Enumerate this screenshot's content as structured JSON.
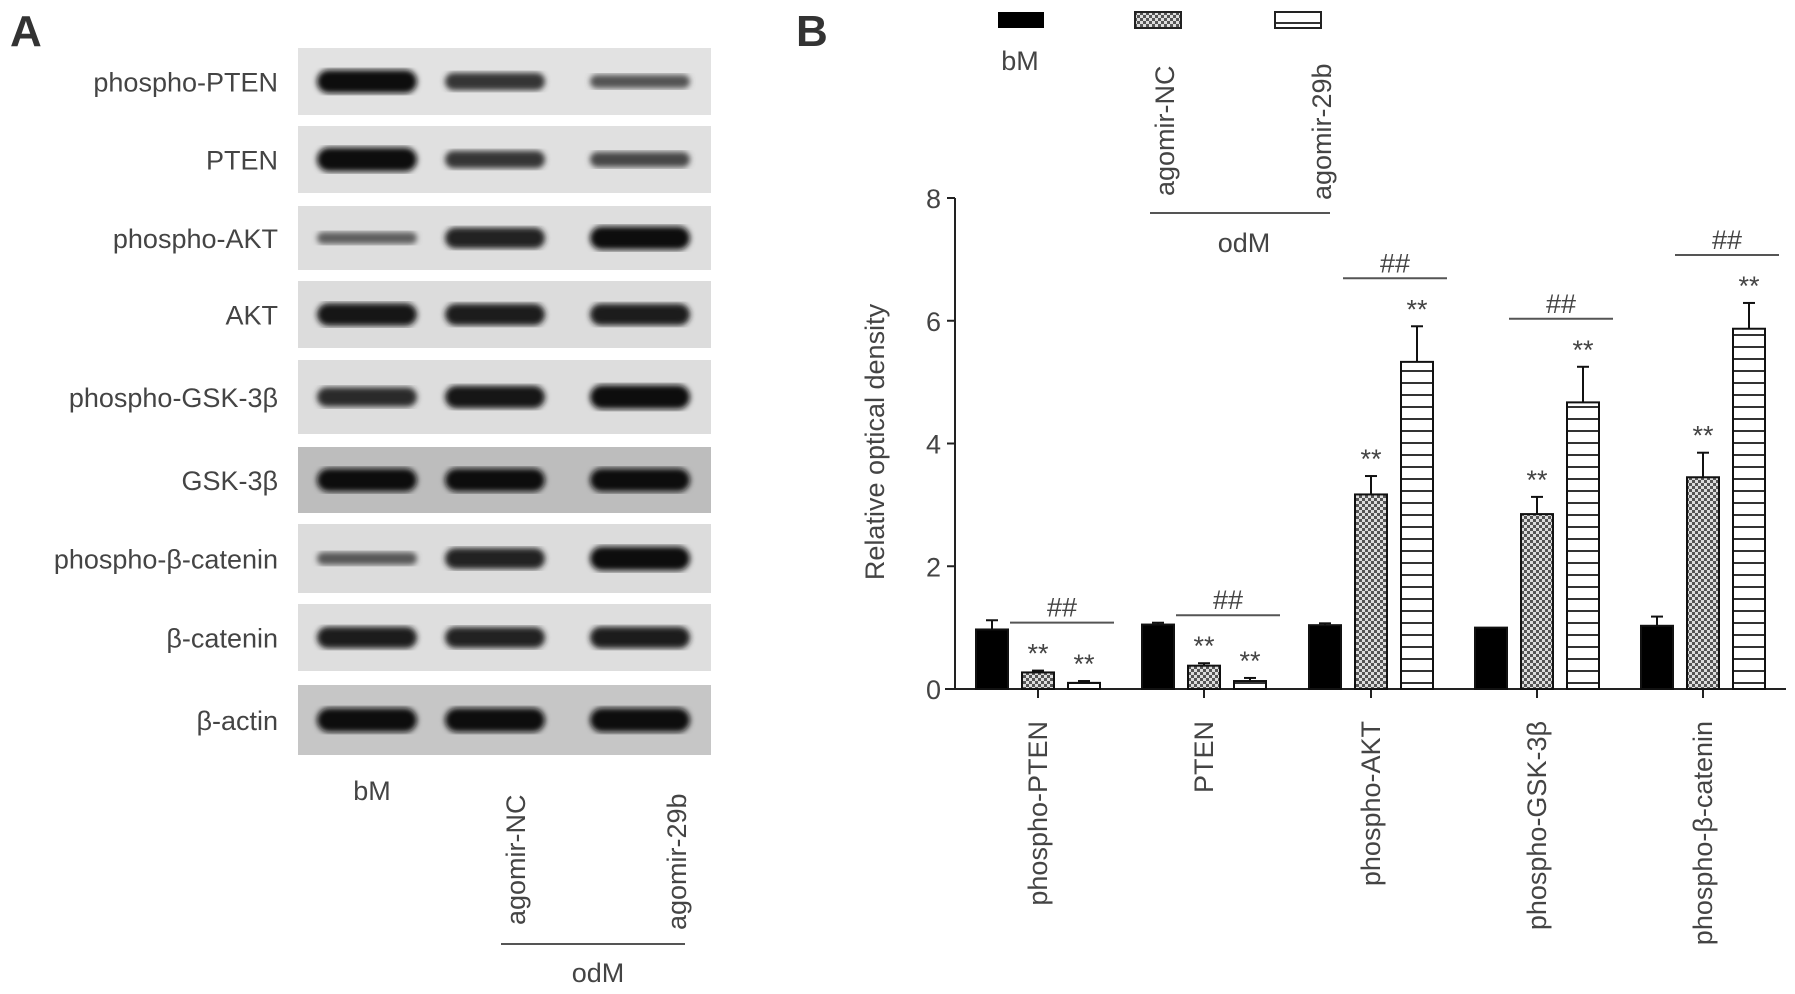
{
  "panel_a": {
    "letter": "A",
    "rows": [
      {
        "label": "phospho-PTEN",
        "background": "#e2e2e2",
        "band_intensity": [
          0.95,
          0.6,
          0.35
        ]
      },
      {
        "label": "PTEN",
        "background": "#e0e0e0",
        "band_intensity": [
          1.0,
          0.6,
          0.45
        ]
      },
      {
        "label": "phospho-AKT",
        "background": "#dedede",
        "band_intensity": [
          0.25,
          0.8,
          0.95
        ]
      },
      {
        "label": "AKT",
        "background": "#dcdcdc",
        "band_intensity": [
          0.9,
          0.85,
          0.85
        ]
      },
      {
        "label": "phospho-GSK-3β",
        "background": "#dddddd",
        "band_intensity": [
          0.7,
          0.9,
          1.0
        ]
      },
      {
        "label": "GSK-3β",
        "background": "#bdbdbd",
        "band_intensity": [
          0.95,
          0.95,
          0.95
        ]
      },
      {
        "label": "phospho-β-catenin",
        "background": "#dcdcdc",
        "band_intensity": [
          0.3,
          0.8,
          1.0
        ]
      },
      {
        "label": "β-catenin",
        "background": "#dedede",
        "band_intensity": [
          0.85,
          0.8,
          0.85
        ]
      },
      {
        "label": "β-actin",
        "background": "#c6c6c6",
        "band_intensity": [
          1.0,
          1.0,
          1.0
        ]
      }
    ],
    "lanes": [
      "bM",
      "agomir-NC",
      "agomir-29b"
    ],
    "group_label": "odM"
  },
  "panel_b": {
    "letter": "B"
  },
  "chart_data": {
    "type": "bar",
    "ylabel": "Relative optical density",
    "ylim": [
      0,
      8
    ],
    "yticks": [
      "0",
      "2",
      "4",
      "6",
      "8"
    ],
    "categories": [
      "phospho-PTEN",
      "PTEN",
      "phospho-AKT",
      "phospho-GSK-3β",
      "phospho-β-catenin"
    ],
    "legend": {
      "placement": "top",
      "entries": [
        "bM",
        "agomir-NC",
        "agomir-29b"
      ],
      "group_label": "odM"
    },
    "series": [
      {
        "name": "bM",
        "fill": "solid-black",
        "values": [
          0.97,
          1.05,
          1.04,
          1.0,
          1.03
        ],
        "errors": [
          0.15,
          0.03,
          0.03,
          0.0,
          0.15
        ]
      },
      {
        "name": "agomir-NC",
        "fill": "checkered",
        "values": [
          0.27,
          0.38,
          3.17,
          2.85,
          3.45
        ],
        "errors": [
          0.03,
          0.04,
          0.3,
          0.28,
          0.4
        ]
      },
      {
        "name": "agomir-29b",
        "fill": "horizontal-stripes",
        "values": [
          0.1,
          0.13,
          5.33,
          4.67,
          5.87
        ],
        "errors": [
          0.03,
          0.05,
          0.58,
          0.58,
          0.42
        ]
      }
    ],
    "annotations": {
      "vs_bM": "**",
      "vs_agomir_NC": "##"
    }
  }
}
